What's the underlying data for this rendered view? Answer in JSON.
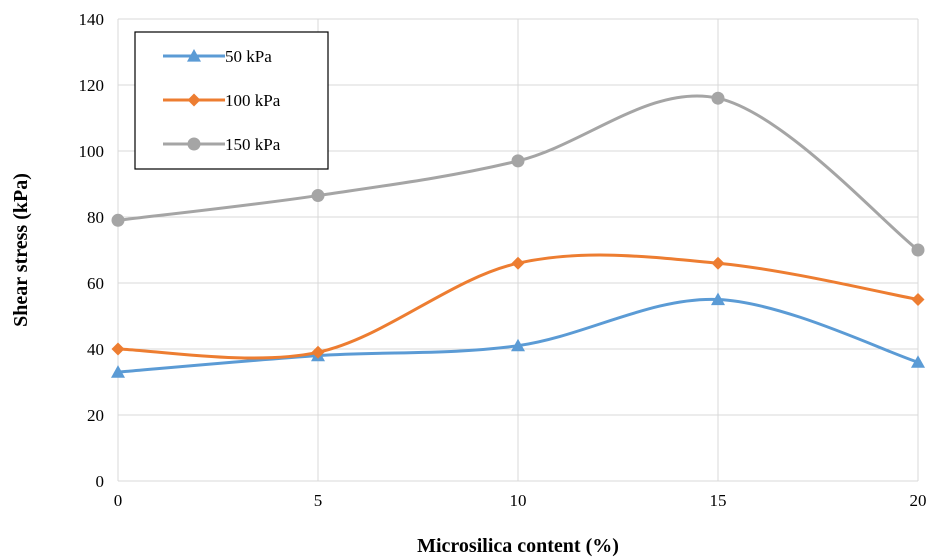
{
  "chart_data": {
    "type": "line",
    "title": "",
    "xlabel": "Microsilica content (%)",
    "ylabel": "Shear stress (kPa)",
    "x": [
      0,
      5,
      10,
      15,
      20
    ],
    "xticks": [
      "0",
      "5",
      "10",
      "15",
      "20"
    ],
    "yticks": [
      "0",
      "20",
      "40",
      "60",
      "80",
      "100",
      "120",
      "140"
    ],
    "xlim": [
      0,
      20
    ],
    "ylim": [
      0,
      140
    ],
    "grid": true,
    "smooth": true,
    "legend_position": "top-left",
    "series": [
      {
        "name": "50 kPa",
        "values": [
          33,
          38,
          41,
          55,
          36
        ],
        "color": "#5B9BD5",
        "marker": "triangle"
      },
      {
        "name": "100 kPa",
        "values": [
          40,
          39,
          66,
          66,
          55
        ],
        "color": "#ED7D31",
        "marker": "diamond"
      },
      {
        "name": "150 kPa",
        "values": [
          79,
          86.5,
          97,
          116,
          70
        ],
        "color": "#A5A5A5",
        "marker": "circle"
      }
    ]
  }
}
